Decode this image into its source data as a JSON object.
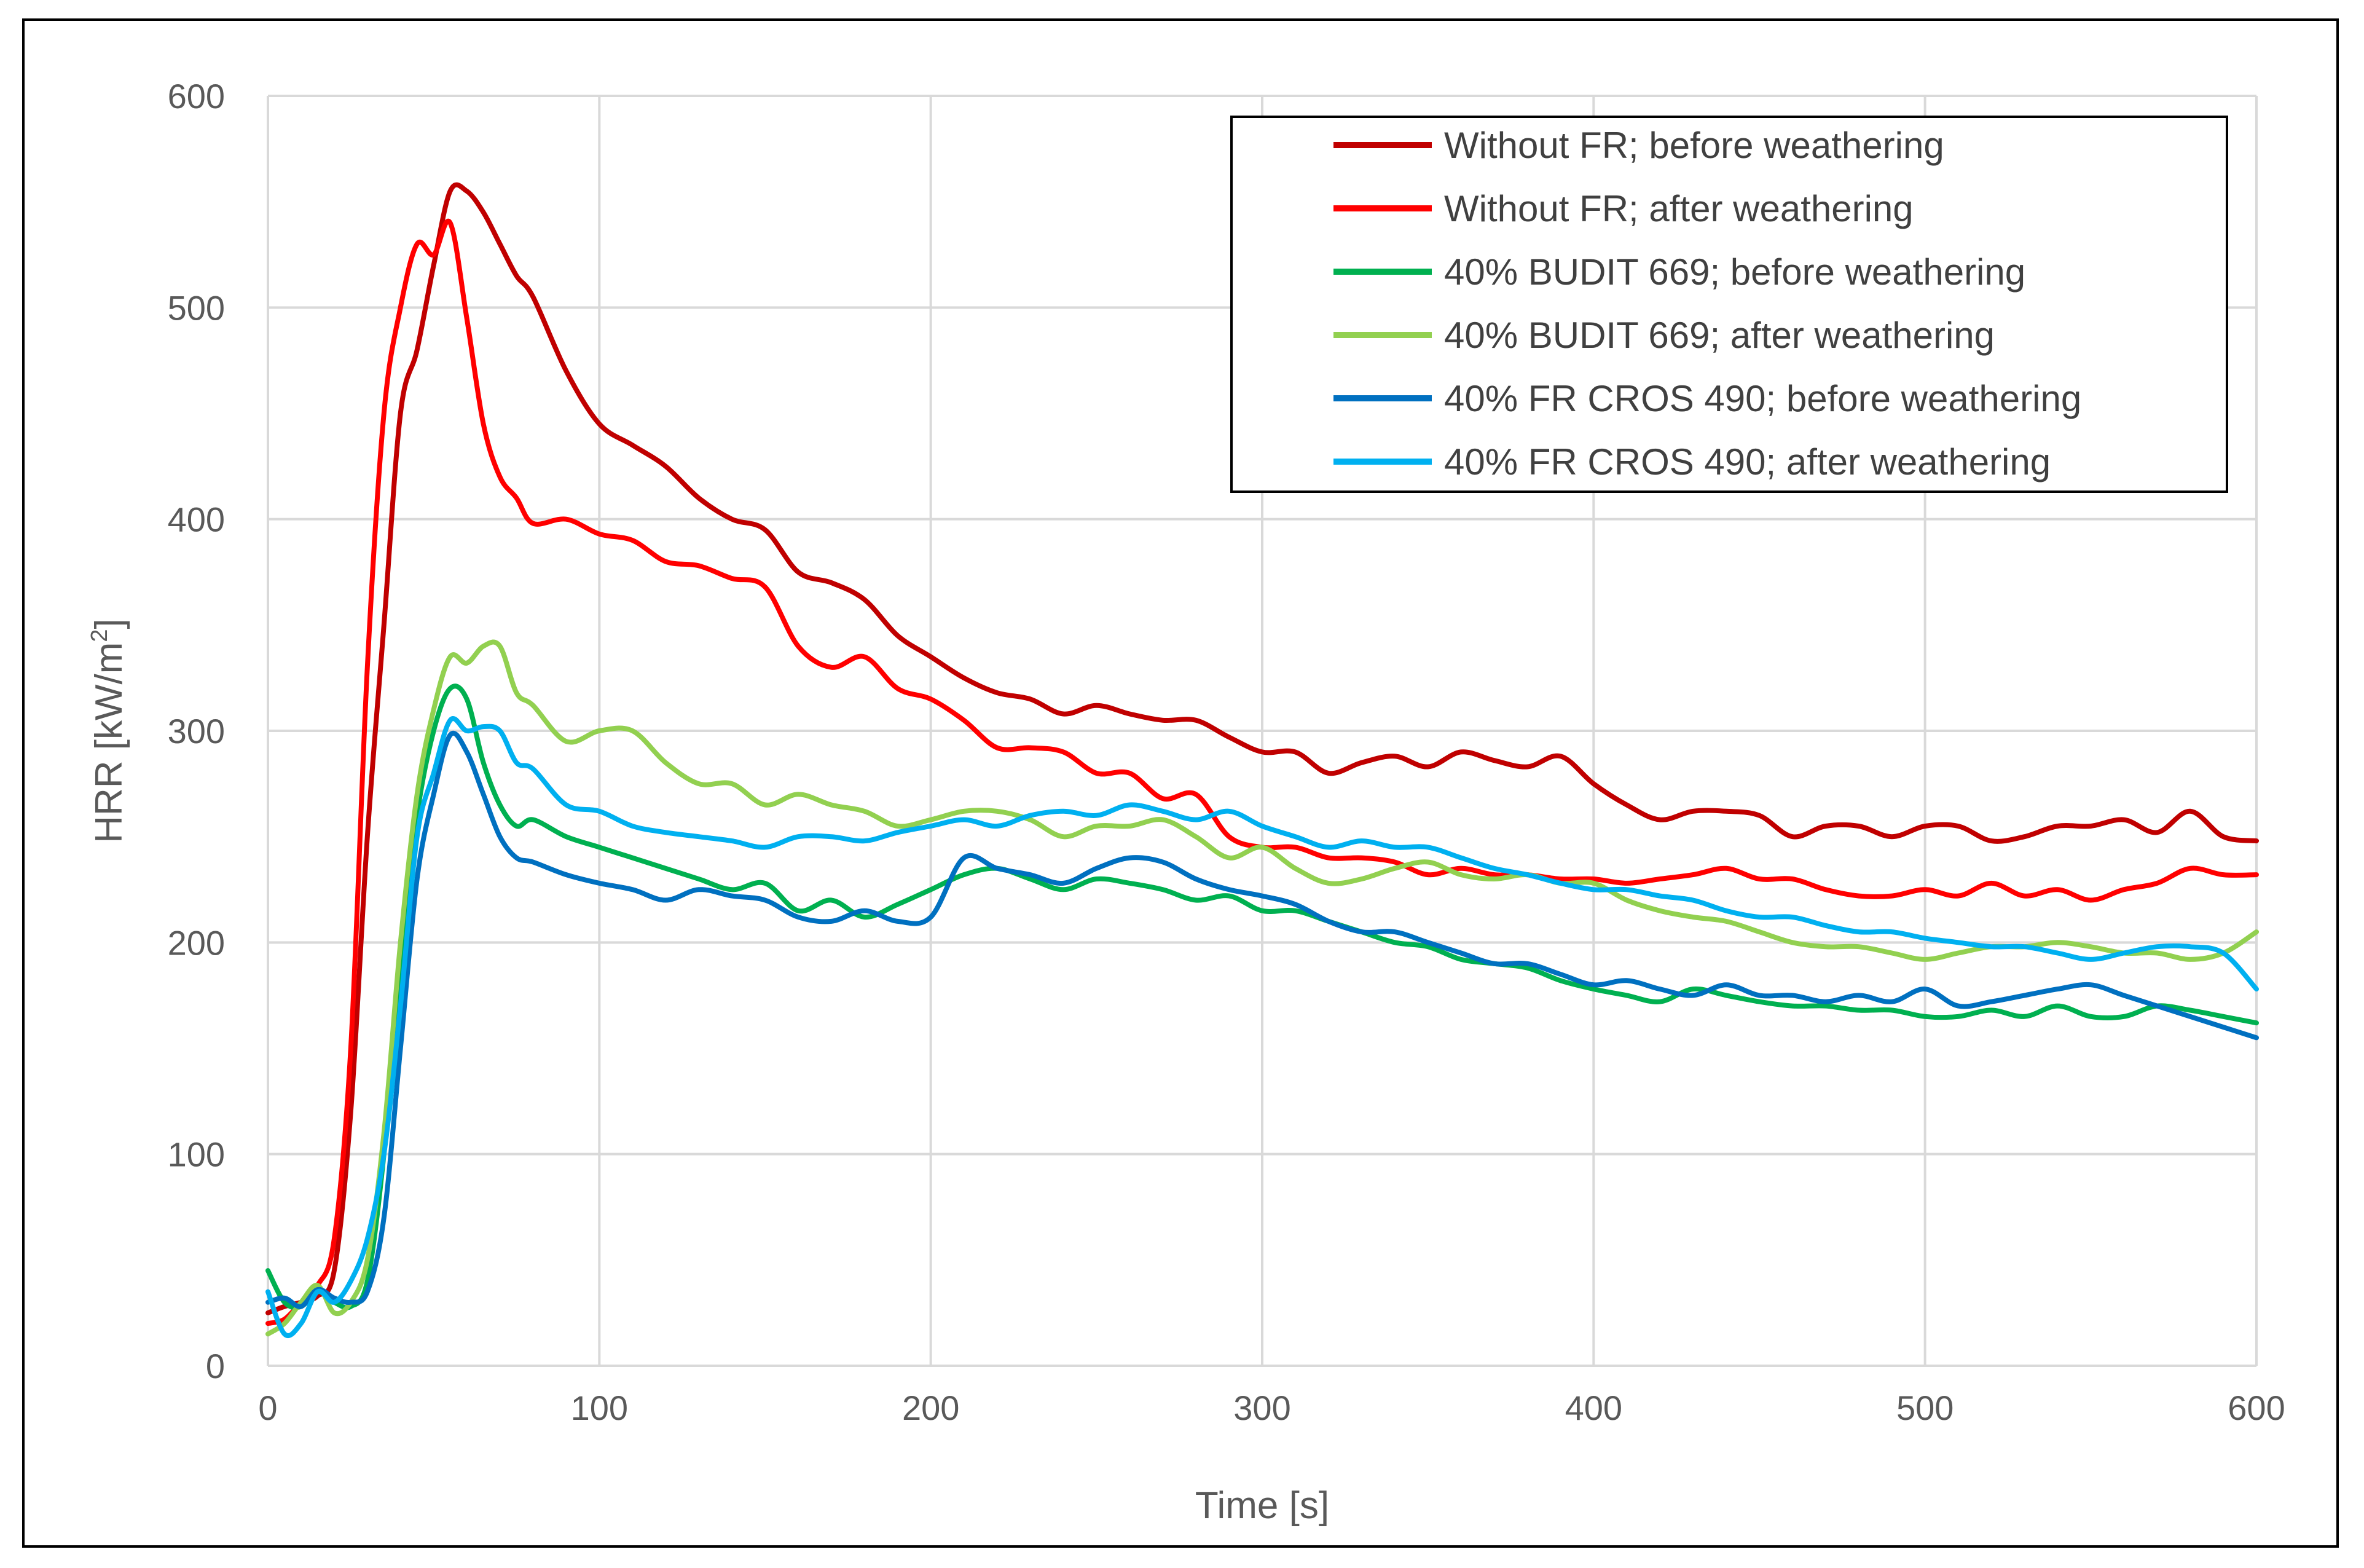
{
  "chart_data": {
    "type": "line",
    "title": "",
    "xlabel": "Time [s]",
    "ylabel": "HRR [kW/m²]",
    "ylabel_parts": {
      "main": "HRR [kW/m",
      "sup": "2",
      "close": "]"
    },
    "xlim": [
      0,
      600
    ],
    "ylim": [
      0,
      600
    ],
    "xticks": [
      0,
      100,
      200,
      300,
      400,
      500,
      600
    ],
    "yticks": [
      0,
      100,
      200,
      300,
      400,
      500,
      600
    ],
    "grid": true,
    "legend_position": "top-right",
    "x": [
      0,
      5,
      10,
      15,
      20,
      25,
      30,
      35,
      40,
      45,
      50,
      55,
      60,
      65,
      70,
      75,
      80,
      90,
      100,
      110,
      120,
      130,
      140,
      150,
      160,
      170,
      180,
      190,
      200,
      210,
      220,
      230,
      240,
      250,
      260,
      270,
      280,
      290,
      300,
      310,
      320,
      330,
      340,
      350,
      360,
      370,
      380,
      390,
      400,
      410,
      420,
      430,
      440,
      450,
      460,
      470,
      480,
      490,
      500,
      510,
      520,
      530,
      540,
      550,
      560,
      570,
      580,
      590,
      600
    ],
    "series": [
      {
        "name": "Without FR; before weathering",
        "color": "#C00000",
        "values": [
          25,
          28,
          30,
          33,
          45,
          120,
          250,
          350,
          450,
          480,
          520,
          555,
          555,
          545,
          530,
          515,
          505,
          470,
          445,
          435,
          425,
          410,
          400,
          395,
          375,
          370,
          362,
          345,
          335,
          325,
          318,
          315,
          308,
          312,
          308,
          305,
          305,
          297,
          290,
          290,
          280,
          285,
          288,
          283,
          290,
          286,
          283,
          288,
          275,
          265,
          258,
          262,
          262,
          260,
          250,
          255,
          255,
          250,
          255,
          255,
          248,
          250,
          255,
          255,
          258,
          252,
          262,
          250,
          248
        ]
      },
      {
        "name": "Without FR; after weathering",
        "color": "#FF0000",
        "values": [
          20,
          22,
          30,
          38,
          60,
          150,
          330,
          450,
          500,
          530,
          525,
          540,
          495,
          445,
          420,
          410,
          398,
          400,
          393,
          390,
          380,
          378,
          372,
          368,
          340,
          330,
          335,
          320,
          315,
          305,
          292,
          292,
          290,
          280,
          280,
          268,
          270,
          250,
          245,
          245,
          240,
          240,
          238,
          232,
          235,
          232,
          232,
          230,
          230,
          228,
          230,
          232,
          235,
          230,
          230,
          225,
          222,
          222,
          225,
          222,
          228,
          222,
          225,
          220,
          225,
          228,
          235,
          232,
          232
        ]
      },
      {
        "name": "40% BUDIT 669; before weathering",
        "color": "#00B050",
        "values": [
          45,
          30,
          28,
          35,
          30,
          28,
          40,
          100,
          190,
          260,
          300,
          320,
          315,
          285,
          265,
          255,
          258,
          250,
          245,
          240,
          235,
          230,
          225,
          228,
          215,
          220,
          212,
          218,
          225,
          232,
          235,
          230,
          225,
          230,
          228,
          225,
          220,
          222,
          215,
          215,
          210,
          205,
          200,
          198,
          192,
          190,
          188,
          182,
          178,
          175,
          172,
          178,
          175,
          172,
          170,
          170,
          168,
          168,
          165,
          165,
          168,
          165,
          170,
          165,
          165,
          170,
          168,
          165,
          162
        ]
      },
      {
        "name": "40% BUDIT 669; after weathering",
        "color": "#92D050",
        "values": [
          15,
          20,
          30,
          38,
          25,
          30,
          50,
          110,
          200,
          270,
          310,
          335,
          332,
          340,
          340,
          318,
          312,
          295,
          300,
          300,
          285,
          275,
          275,
          265,
          270,
          265,
          262,
          255,
          258,
          262,
          262,
          258,
          250,
          255,
          255,
          258,
          250,
          240,
          245,
          235,
          228,
          230,
          235,
          238,
          232,
          230,
          232,
          228,
          228,
          220,
          215,
          212,
          210,
          205,
          200,
          198,
          198,
          195,
          192,
          195,
          198,
          198,
          200,
          198,
          195,
          195,
          192,
          195,
          205
        ]
      },
      {
        "name": "40% FR CROS 490; before weathering",
        "color": "#0070C0",
        "values": [
          30,
          32,
          28,
          36,
          32,
          30,
          35,
          70,
          150,
          230,
          270,
          298,
          290,
          270,
          250,
          240,
          238,
          232,
          228,
          225,
          220,
          225,
          222,
          220,
          212,
          210,
          215,
          210,
          212,
          240,
          235,
          232,
          228,
          235,
          240,
          238,
          230,
          225,
          222,
          218,
          210,
          205,
          205,
          200,
          195,
          190,
          190,
          185,
          180,
          182,
          178,
          175,
          180,
          175,
          175,
          172,
          175,
          172,
          178,
          170,
          172,
          175,
          178,
          180,
          175,
          170,
          165,
          160,
          155
        ]
      },
      {
        "name": "40% FR CROS 490; after weathering",
        "color": "#00B0F0",
        "values": [
          35,
          15,
          20,
          35,
          30,
          40,
          60,
          100,
          170,
          250,
          280,
          305,
          300,
          302,
          300,
          285,
          282,
          265,
          262,
          255,
          252,
          250,
          248,
          245,
          250,
          250,
          248,
          252,
          255,
          258,
          255,
          260,
          262,
          260,
          265,
          262,
          258,
          262,
          255,
          250,
          245,
          248,
          245,
          245,
          240,
          235,
          232,
          228,
          225,
          225,
          222,
          220,
          215,
          212,
          212,
          208,
          205,
          205,
          202,
          200,
          198,
          198,
          195,
          192,
          195,
          198,
          198,
          195,
          178
        ]
      }
    ]
  }
}
